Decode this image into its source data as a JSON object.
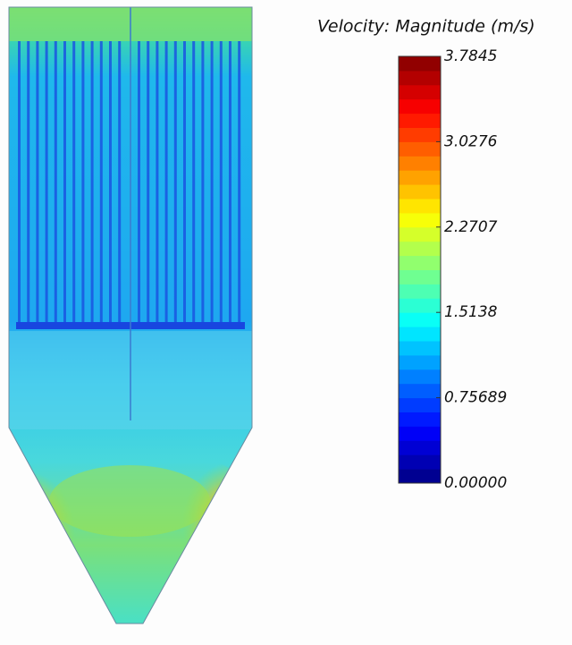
{
  "legend": {
    "title": "Velocity: Magnitude (m/s)",
    "range": [
      0,
      3.7845
    ],
    "ticks": [
      {
        "value": 0,
        "label": "0.00000"
      },
      0.75689,
      1.5138,
      2.2707,
      3.0276,
      3.7845
    ]
  }
}
